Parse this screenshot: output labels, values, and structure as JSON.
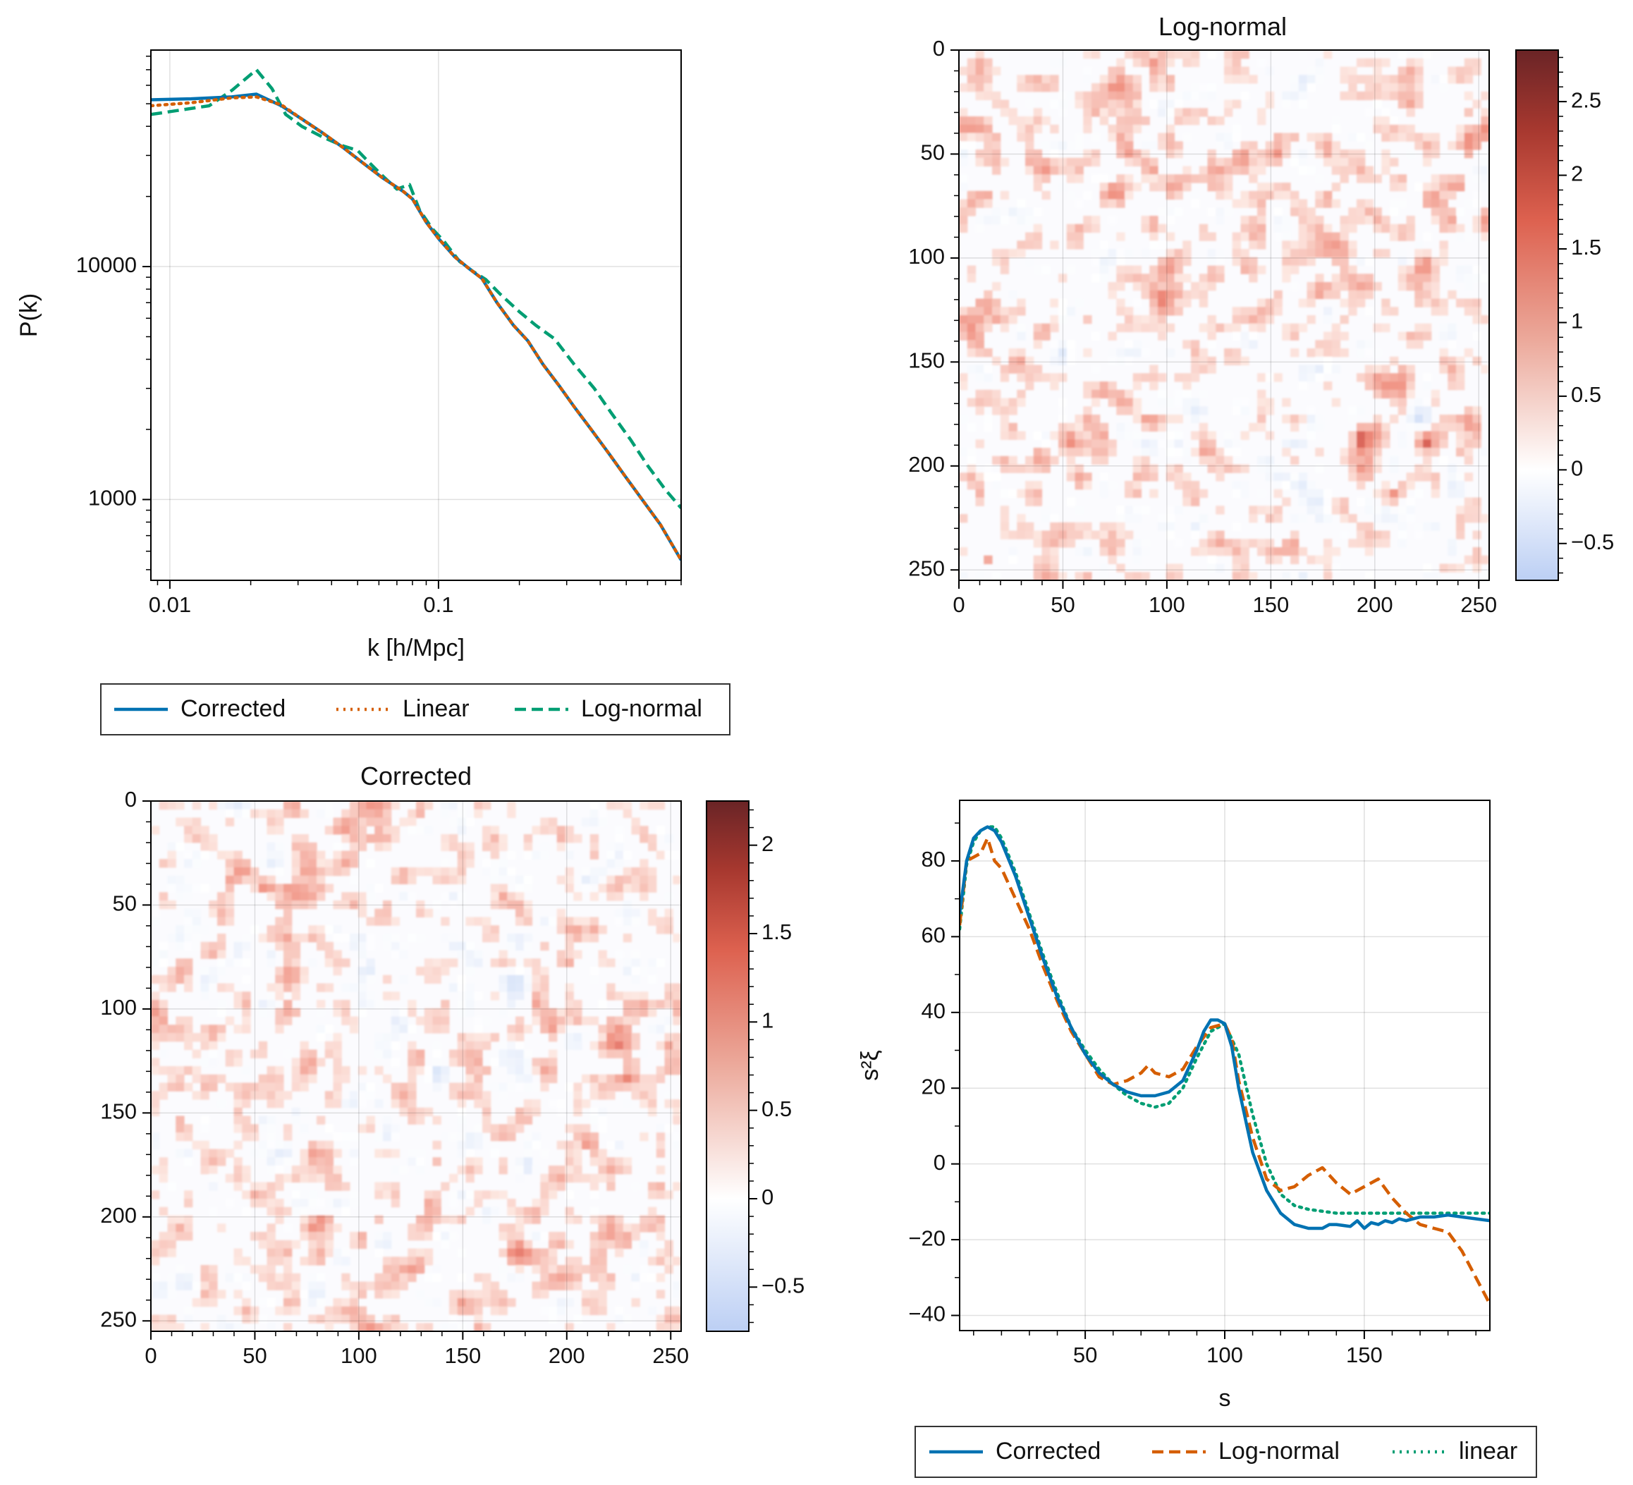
{
  "chart_data": [
    {
      "id": "power-spectrum",
      "type": "line",
      "title": "",
      "xlabel": "k [h/Mpc]",
      "ylabel": "P(k)",
      "xscale": "log",
      "yscale": "log",
      "xlim": [
        0.0085,
        0.8
      ],
      "ylim": [
        450,
        85000
      ],
      "xticks": [
        {
          "v": 0.01,
          "label": "0.01"
        },
        {
          "v": 0.1,
          "label": "0.1"
        }
      ],
      "yticks": [
        {
          "v": 1000,
          "label": "1000"
        },
        {
          "v": 10000,
          "label": "10000"
        }
      ],
      "grid": true,
      "legend_position": "below",
      "series": [
        {
          "name": "Corrected",
          "color": "#0072b2",
          "style": "solid",
          "x": [
            0.0085,
            0.012,
            0.017,
            0.021,
            0.026,
            0.031,
            0.037,
            0.044,
            0.052,
            0.062,
            0.074,
            0.08,
            0.09,
            0.1,
            0.115,
            0.13,
            0.145,
            0.165,
            0.19,
            0.215,
            0.245,
            0.28,
            0.32,
            0.37,
            0.43,
            0.5,
            0.58,
            0.67,
            0.8
          ],
          "y": [
            52000,
            52500,
            53500,
            55000,
            49000,
            43000,
            37500,
            32500,
            28000,
            24000,
            21000,
            19500,
            15500,
            13200,
            11000,
            9800,
            8900,
            7000,
            5600,
            4800,
            3800,
            3100,
            2500,
            2000,
            1580,
            1240,
            980,
            780,
            550
          ]
        },
        {
          "name": "Linear",
          "color": "#d55e00",
          "style": "dotted",
          "x": [
            0.0085,
            0.012,
            0.017,
            0.021,
            0.026,
            0.031,
            0.037,
            0.044,
            0.052,
            0.062,
            0.074,
            0.08,
            0.09,
            0.1,
            0.115,
            0.13,
            0.145,
            0.165,
            0.19,
            0.215,
            0.245,
            0.28,
            0.32,
            0.37,
            0.43,
            0.5,
            0.58,
            0.67,
            0.8
          ],
          "y": [
            49000,
            50500,
            53000,
            53500,
            49500,
            43000,
            37500,
            32500,
            28000,
            24000,
            21000,
            19500,
            15500,
            13200,
            11000,
            9800,
            8900,
            7000,
            5600,
            4800,
            3800,
            3100,
            2500,
            2000,
            1580,
            1240,
            980,
            780,
            550
          ]
        },
        {
          "name": "Log-normal",
          "color": "#009e73",
          "style": "dashed",
          "x": [
            0.0085,
            0.011,
            0.014,
            0.017,
            0.021,
            0.024,
            0.027,
            0.031,
            0.037,
            0.044,
            0.05,
            0.056,
            0.062,
            0.07,
            0.078,
            0.085,
            0.095,
            0.105,
            0.12,
            0.135,
            0.15,
            0.17,
            0.2,
            0.23,
            0.27,
            0.32,
            0.38,
            0.44,
            0.52,
            0.6,
            0.7,
            0.8
          ],
          "y": [
            45000,
            47000,
            49000,
            57000,
            70000,
            58000,
            45000,
            40000,
            36000,
            33000,
            31500,
            27500,
            24500,
            21500,
            22500,
            17500,
            14500,
            12800,
            10500,
            9500,
            8800,
            7600,
            6400,
            5600,
            4900,
            3800,
            3000,
            2350,
            1800,
            1400,
            1100,
            920
          ]
        }
      ]
    },
    {
      "id": "lognormal-field",
      "type": "heatmap",
      "title": "Log-normal",
      "xlim": [
        0,
        255
      ],
      "ylim": [
        255,
        0
      ],
      "xticks": [
        0,
        50,
        100,
        150,
        200,
        250
      ],
      "yticks": [
        0,
        50,
        100,
        150,
        200,
        250
      ],
      "colormap": "coolwarm",
      "colorbar": {
        "min": -0.75,
        "max": 2.85,
        "ticks": [
          -0.5,
          0,
          0.5,
          1,
          1.5,
          2,
          2.5
        ],
        "tick_labels": [
          "−0.5",
          "0",
          "0.5",
          "1",
          "1.5",
          "2",
          "2.5"
        ]
      }
    },
    {
      "id": "corrected-field",
      "type": "heatmap",
      "title": "Corrected",
      "xlim": [
        0,
        255
      ],
      "ylim": [
        255,
        0
      ],
      "xticks": [
        0,
        50,
        100,
        150,
        200,
        250
      ],
      "yticks": [
        0,
        50,
        100,
        150,
        200,
        250
      ],
      "colormap": "coolwarm",
      "colorbar": {
        "min": -0.75,
        "max": 2.25,
        "ticks": [
          -0.5,
          0,
          0.5,
          1,
          1.5,
          2
        ],
        "tick_labels": [
          "−0.5",
          "0",
          "0.5",
          "1",
          "1.5",
          "2"
        ]
      }
    },
    {
      "id": "correlation-function",
      "type": "line",
      "title": "",
      "xlabel": "s",
      "ylabel": "s²ξ",
      "xlim": [
        5,
        195
      ],
      "ylim": [
        -44,
        96
      ],
      "xticks": [
        50,
        100,
        150
      ],
      "yticks": [
        {
          "v": -40,
          "label": "−40"
        },
        {
          "v": -20,
          "label": "−20"
        },
        {
          "v": 0,
          "label": "0"
        },
        {
          "v": 20,
          "label": "20"
        },
        {
          "v": 40,
          "label": "40"
        },
        {
          "v": 60,
          "label": "60"
        },
        {
          "v": 80,
          "label": "80"
        }
      ],
      "grid": true,
      "legend_position": "below",
      "series": [
        {
          "name": "Corrected",
          "color": "#0072b2",
          "style": "solid",
          "x": [
            5,
            7.5,
            10,
            12.5,
            15,
            17.5,
            20,
            25,
            30,
            35,
            40,
            45,
            50,
            55,
            60,
            65,
            70,
            75,
            80,
            85,
            87.5,
            90,
            92.5,
            95,
            97.5,
            100,
            102.5,
            105,
            110,
            115,
            120,
            125,
            130,
            135,
            137.5,
            140,
            145,
            147.5,
            150,
            152.5,
            155,
            157.5,
            160,
            162.5,
            165,
            170,
            175,
            180,
            185,
            190,
            195
          ],
          "y": [
            66,
            80,
            86,
            88,
            89,
            88,
            85,
            76,
            65,
            54,
            44,
            36,
            29,
            24,
            21,
            19,
            18,
            18,
            19,
            22,
            26,
            30,
            35,
            38,
            38,
            37,
            31,
            20,
            3,
            -7,
            -13,
            -16,
            -17,
            -17,
            -16,
            -16,
            -16.5,
            -15,
            -17,
            -15.5,
            -16,
            -15,
            -15.5,
            -14.5,
            -15,
            -14,
            -14,
            -13.5,
            -14,
            -14.5,
            -15
          ]
        },
        {
          "name": "Log-normal",
          "color": "#d55e00",
          "style": "dashed",
          "x": [
            5,
            7.5,
            10,
            12.5,
            15,
            17.5,
            20,
            25,
            30,
            35,
            40,
            45,
            50,
            55,
            60,
            65,
            70,
            72.5,
            75,
            80,
            85,
            90,
            95,
            100,
            102.5,
            105,
            110,
            115,
            120,
            125,
            130,
            135,
            140,
            145,
            150,
            155,
            160,
            165,
            170,
            175,
            180,
            185,
            190,
            195
          ],
          "y": [
            63,
            80,
            81,
            82,
            86,
            80,
            78,
            70,
            62,
            52,
            43,
            35,
            29,
            23,
            21,
            22,
            24,
            26,
            24,
            23,
            25,
            31,
            36,
            37,
            33,
            22,
            7,
            -4,
            -7,
            -6,
            -3,
            -1,
            -5,
            -8,
            -6,
            -4,
            -9,
            -13,
            -16,
            -17,
            -18,
            -23,
            -30,
            -37
          ]
        },
        {
          "name": "linear",
          "color": "#009e73",
          "style": "dotted",
          "x": [
            5,
            7.5,
            10,
            12.5,
            15,
            17.5,
            20,
            25,
            30,
            35,
            40,
            45,
            50,
            55,
            60,
            65,
            70,
            75,
            80,
            85,
            90,
            95,
            100,
            105,
            110,
            115,
            120,
            125,
            130,
            140,
            150,
            160,
            170,
            180,
            190,
            195
          ],
          "y": [
            62,
            79,
            85,
            88,
            89,
            89,
            86,
            77,
            66,
            55,
            45,
            36,
            30,
            25,
            21,
            18,
            16,
            15,
            16,
            20,
            28,
            35,
            37,
            29,
            13,
            0,
            -8,
            -11,
            -12,
            -13,
            -13,
            -13,
            -13,
            -13,
            -13,
            -13
          ]
        }
      ]
    }
  ]
}
